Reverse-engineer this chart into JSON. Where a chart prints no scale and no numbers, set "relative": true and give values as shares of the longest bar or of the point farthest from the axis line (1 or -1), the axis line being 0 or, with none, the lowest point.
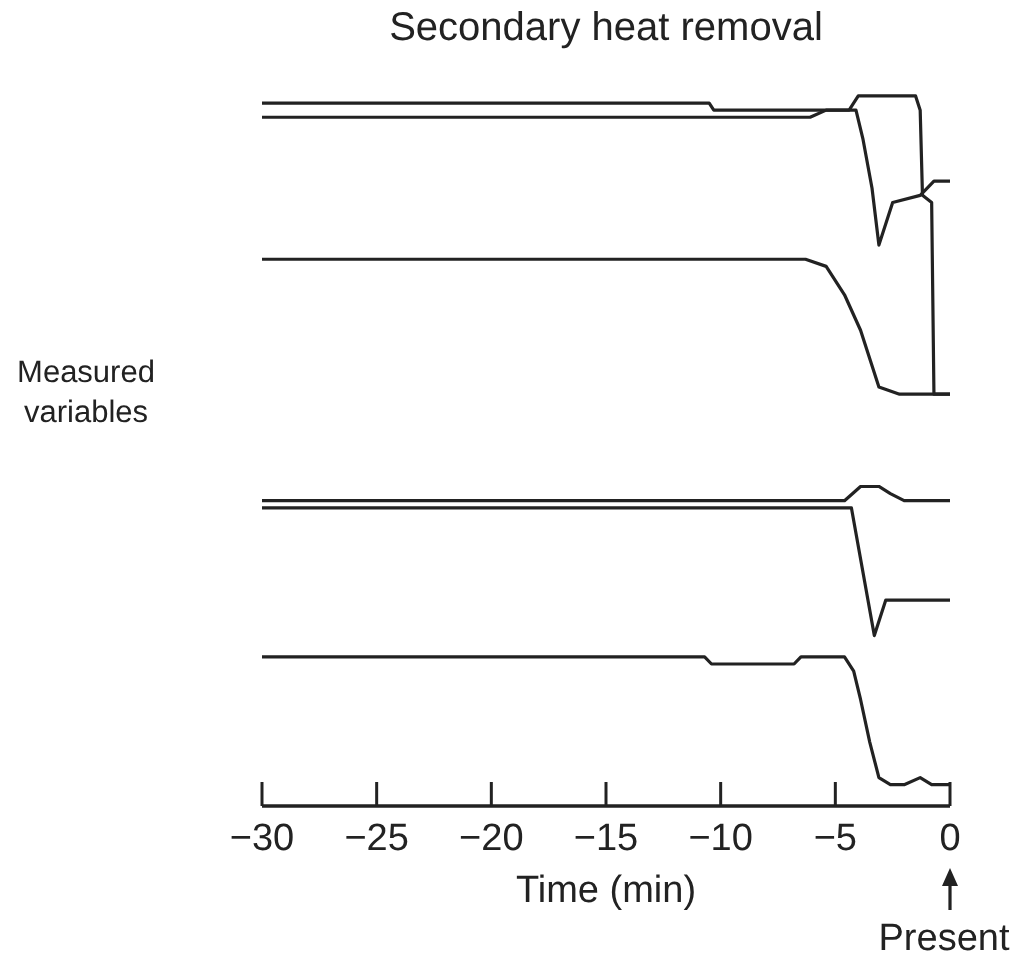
{
  "chart_data": {
    "type": "line",
    "title": "Secondary heat removal",
    "xlabel": "Time (min)",
    "ylabel": "Measured variables",
    "annotations": [
      "Present"
    ],
    "relative": true,
    "xlim": [
      -30,
      0
    ],
    "xticks": [
      -30,
      -25,
      -20,
      -15,
      -10,
      -5,
      0
    ],
    "series": [
      {
        "color": "#222222",
        "x": [
          -30,
          -10.5,
          -10.3,
          -4.4,
          -4.0,
          -1.5,
          -1.3,
          -1.2,
          -0.8,
          -0.7,
          0
        ],
        "values": [
          0.99,
          0.99,
          0.98,
          0.98,
          1,
          1,
          0.98,
          0.86,
          0.85,
          0.58,
          0.58
        ]
      },
      {
        "color": "#222222",
        "x": [
          -30,
          -6.1,
          -5.4,
          -4.1,
          -3.8,
          -3.4,
          -3.1,
          -2.5,
          -1.3,
          -0.7,
          -0.3,
          0
        ],
        "values": [
          0.97,
          0.97,
          0.98,
          0.98,
          0.94,
          0.87,
          0.79,
          0.85,
          0.86,
          0.88,
          0.88,
          0.88
        ]
      },
      {
        "color": "#222222",
        "x": [
          -30,
          -6.3,
          -5.4,
          -4.6,
          -3.9,
          -3.1,
          -2.2,
          0
        ],
        "values": [
          0.77,
          0.77,
          0.76,
          0.72,
          0.67,
          0.59,
          0.58,
          0.58
        ]
      },
      {
        "color": "#222222",
        "x": [
          -30,
          -4.6,
          -3.9,
          -3.1,
          -2.6,
          -2,
          0
        ],
        "values": [
          0.43,
          0.43,
          0.45,
          0.45,
          0.44,
          0.43,
          0.43
        ]
      },
      {
        "color": "#222222",
        "x": [
          -30,
          -4.3,
          -3.3,
          -2.8,
          0
        ],
        "values": [
          0.42,
          0.42,
          0.24,
          0.29,
          0.29
        ]
      },
      {
        "color": "#222222",
        "x": [
          -30,
          -10.7,
          -10.4,
          -6.8,
          -6.5,
          -4.6,
          -4.2,
          -3.9,
          -3.5,
          -3.1,
          -2.6,
          -2,
          -1.3,
          -0.8,
          0
        ],
        "values": [
          0.21,
          0.21,
          0.2,
          0.2,
          0.21,
          0.21,
          0.19,
          0.15,
          0.09,
          0.04,
          0.03,
          0.03,
          0.04,
          0.03,
          0.03
        ]
      }
    ]
  }
}
